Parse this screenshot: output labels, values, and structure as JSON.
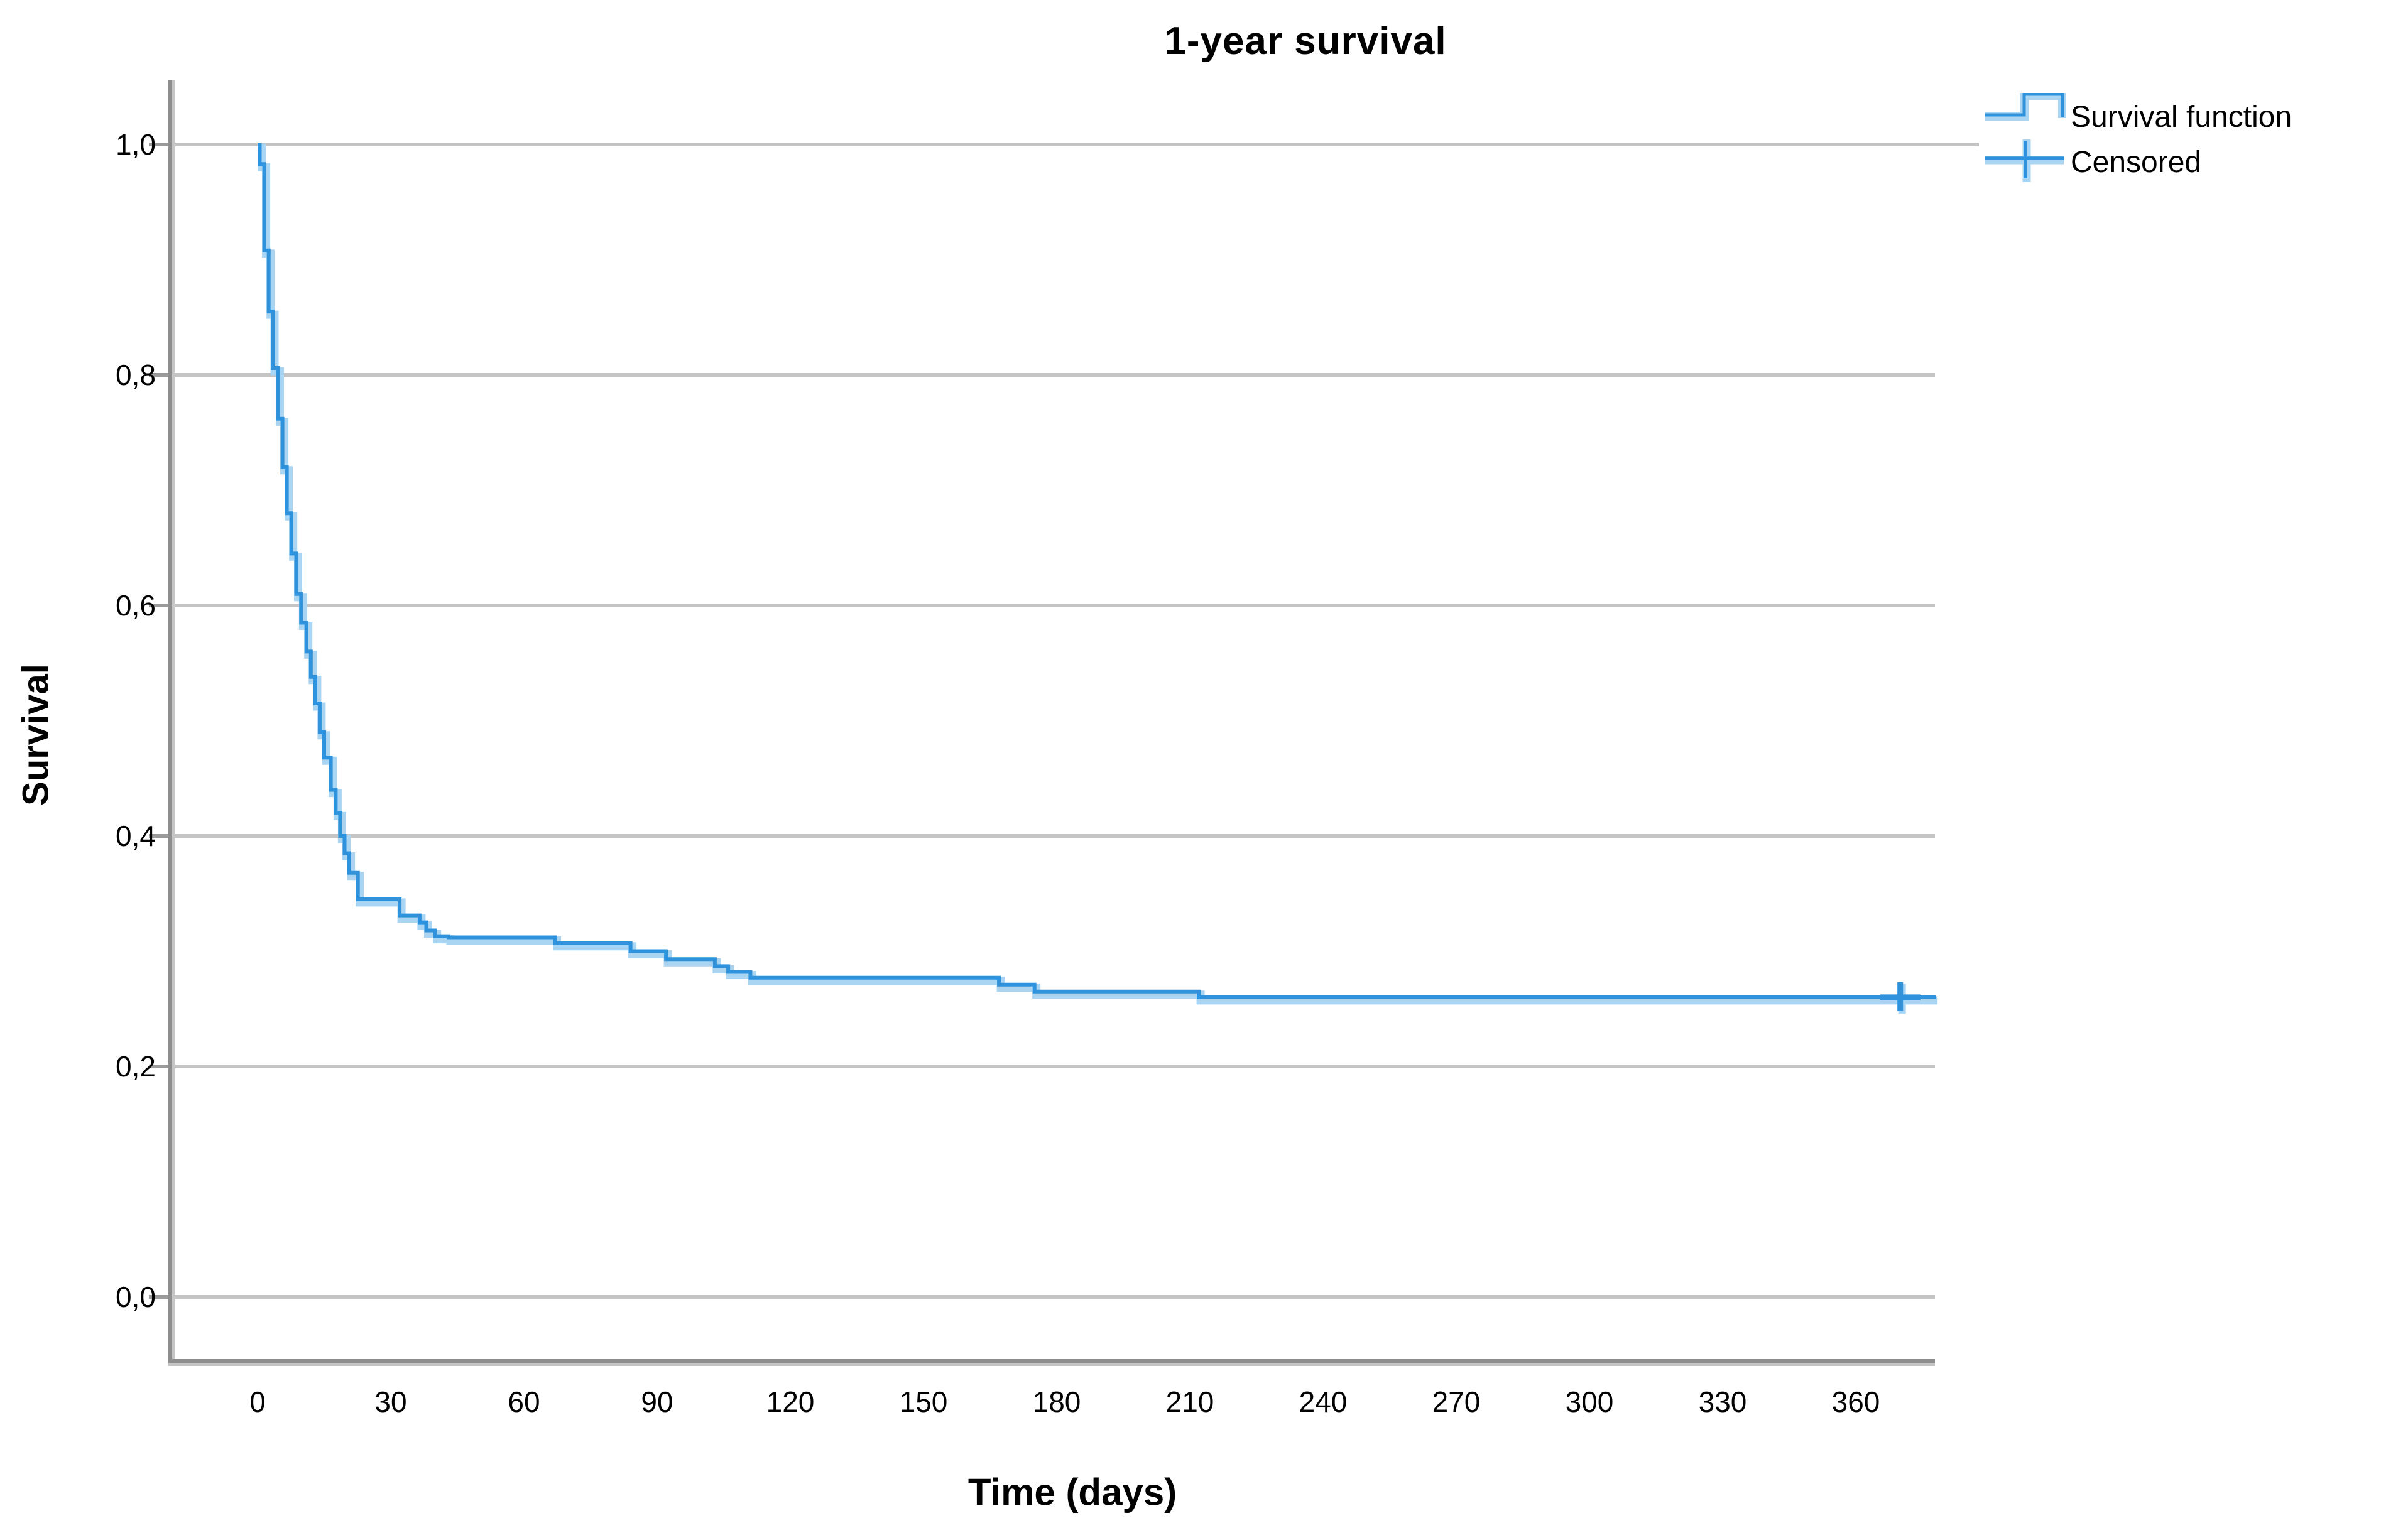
{
  "title": "1-year survival",
  "legend": {
    "items": [
      {
        "label": "Survival function",
        "symbol": "step-line"
      },
      {
        "label": "Censored",
        "symbol": "plus-marker"
      }
    ]
  },
  "chart_data": {
    "type": "line",
    "subtype": "kaplan-meier-step",
    "title": "1-year survival",
    "xlabel": "Time (days)",
    "ylabel": "Survival",
    "x_ticks": [
      0,
      30,
      60,
      90,
      120,
      150,
      180,
      210,
      240,
      270,
      300,
      330,
      360
    ],
    "y_tick_values": [
      0.0,
      0.2,
      0.4,
      0.6,
      0.8,
      1.0
    ],
    "y_tick_labels": [
      "0,0",
      "0,2",
      "0,4",
      "0,6",
      "0,8",
      "1,0"
    ],
    "xlim": [
      -20,
      378
    ],
    "ylim": [
      0,
      1.0
    ],
    "grid": "horizontal",
    "legend_position": "top-right",
    "series": [
      {
        "name": "Survival function",
        "type": "step",
        "points": [
          [
            0,
            1.0
          ],
          [
            0.5,
            0.983
          ],
          [
            1.5,
            0.908
          ],
          [
            2.5,
            0.855
          ],
          [
            3.4,
            0.806
          ],
          [
            4.6,
            0.762
          ],
          [
            5.6,
            0.72
          ],
          [
            6.6,
            0.68
          ],
          [
            7.6,
            0.645
          ],
          [
            8.7,
            0.61
          ],
          [
            9.8,
            0.585
          ],
          [
            11,
            0.56
          ],
          [
            12,
            0.538
          ],
          [
            13,
            0.515
          ],
          [
            14,
            0.49
          ],
          [
            15,
            0.468
          ],
          [
            16.5,
            0.44
          ],
          [
            17.6,
            0.42
          ],
          [
            18.6,
            0.4
          ],
          [
            19.6,
            0.385
          ],
          [
            20.6,
            0.368
          ],
          [
            22.6,
            0.345
          ],
          [
            32,
            0.331
          ],
          [
            36.5,
            0.325
          ],
          [
            38,
            0.318
          ],
          [
            40,
            0.313
          ],
          [
            43,
            0.312
          ],
          [
            67,
            0.307
          ],
          [
            84,
            0.3
          ],
          [
            92,
            0.293
          ],
          [
            103,
            0.287
          ],
          [
            106,
            0.282
          ],
          [
            111,
            0.277
          ],
          [
            167,
            0.271
          ],
          [
            175,
            0.265
          ],
          [
            212,
            0.26
          ],
          [
            378,
            0.26
          ]
        ]
      }
    ],
    "censored_points": [
      [
        370,
        0.26
      ]
    ],
    "colors": {
      "curve": "#2E93DC",
      "curve_halo": "#A9D4F2",
      "grid": "#C4C4C4",
      "axis": "#8E8E8E",
      "axis_shadow": "#C6C6C6",
      "tick": "#9B9B9B",
      "text": "#000000",
      "background": "#FFFFFF"
    }
  }
}
